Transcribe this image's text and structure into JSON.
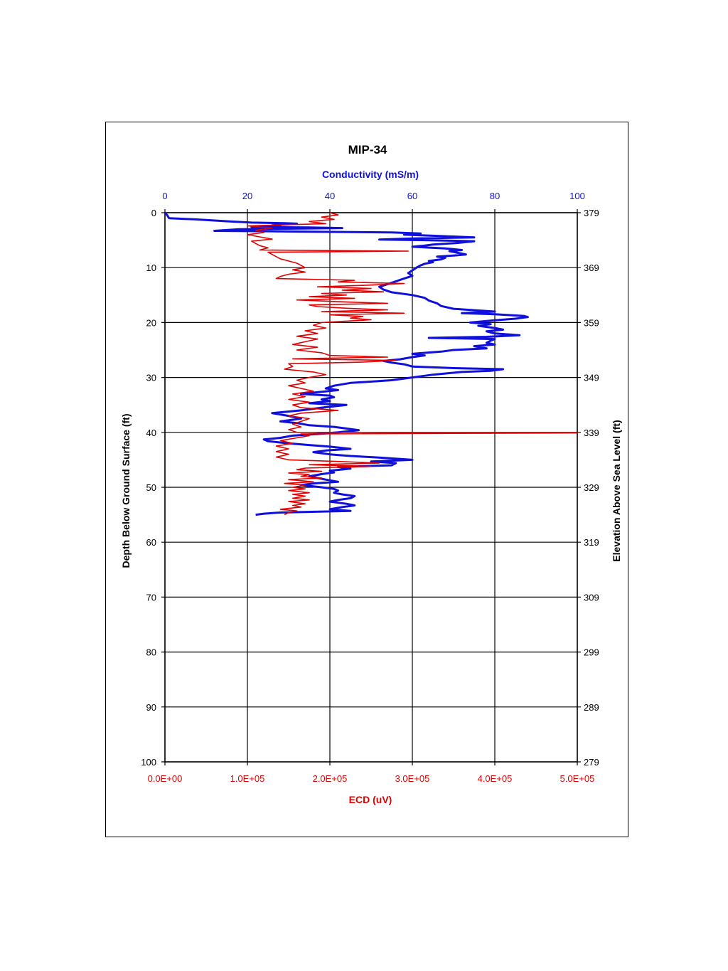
{
  "chart_data": {
    "type": "line",
    "title": "MIP-34",
    "top_axis": {
      "label": "Conductivity (mS/m)",
      "range": [
        0,
        100
      ],
      "ticks": [
        "0",
        "20",
        "40",
        "60",
        "80",
        "100"
      ],
      "color": "#1010dd"
    },
    "bottom_axis": {
      "label": "ECD (uV)",
      "range": [
        0,
        500000
      ],
      "ticks": [
        "0.0E+00",
        "1.0E+05",
        "2.0E+05",
        "3.0E+05",
        "4.0E+05",
        "5.0E+05"
      ],
      "color": "#e00000"
    },
    "left_axis": {
      "label": "Depth Below Ground Surface (ft)",
      "range": [
        0,
        100
      ],
      "ticks": [
        "0",
        "10",
        "20",
        "30",
        "40",
        "50",
        "60",
        "70",
        "80",
        "90",
        "100"
      ]
    },
    "right_axis": {
      "label": "Elevation Above Sea Level (ft)",
      "range": [
        379,
        279
      ],
      "ticks": [
        "379",
        "369",
        "359",
        "349",
        "339",
        "329",
        "319",
        "309",
        "299",
        "289",
        "279"
      ]
    },
    "grid": true,
    "series": [
      {
        "axis": "top",
        "color": "#1010dd",
        "points": [
          [
            0,
            0
          ],
          [
            0.5,
            0.4
          ],
          [
            1,
            1
          ],
          [
            7,
            1.2
          ],
          [
            16,
            1.6
          ],
          [
            21,
            1.8
          ],
          [
            29,
            1.9
          ],
          [
            32,
            2
          ],
          [
            26,
            2.3
          ],
          [
            28,
            2.5
          ],
          [
            21,
            2.6
          ],
          [
            35,
            2.7
          ],
          [
            43,
            2.8
          ],
          [
            18,
            3
          ],
          [
            12,
            3.3
          ],
          [
            27,
            3.4
          ],
          [
            55,
            3.6
          ],
          [
            62,
            3.8
          ],
          [
            58,
            4
          ],
          [
            65,
            4.2
          ],
          [
            75,
            4.5
          ],
          [
            60,
            4.7
          ],
          [
            52,
            4.9
          ],
          [
            63,
            5
          ],
          [
            75,
            5.2
          ],
          [
            71,
            5.5
          ],
          [
            65,
            5.8
          ],
          [
            63,
            6
          ],
          [
            60,
            6.2
          ],
          [
            68,
            6.5
          ],
          [
            72,
            6.8
          ],
          [
            69,
            7
          ],
          [
            71,
            7.3
          ],
          [
            73,
            7.6
          ],
          [
            70,
            7.8
          ],
          [
            66,
            8
          ],
          [
            68,
            8.2
          ],
          [
            67,
            8.5
          ],
          [
            64,
            8.8
          ],
          [
            65,
            9
          ],
          [
            63,
            9.3
          ],
          [
            62,
            9.6
          ],
          [
            61,
            10
          ],
          [
            60,
            10.5
          ],
          [
            59,
            11
          ],
          [
            60,
            11.5
          ],
          [
            58,
            12
          ],
          [
            56,
            12.5
          ],
          [
            54,
            13
          ],
          [
            52,
            13.5
          ],
          [
            53,
            14
          ],
          [
            55,
            14.5
          ],
          [
            60,
            15
          ],
          [
            63,
            15.5
          ],
          [
            64,
            16
          ],
          [
            66,
            16.5
          ],
          [
            67,
            17
          ],
          [
            70,
            17.5
          ],
          [
            80,
            18
          ],
          [
            72,
            18.3
          ],
          [
            80,
            18.5
          ],
          [
            87,
            18.8
          ],
          [
            88,
            19
          ],
          [
            85,
            19.3
          ],
          [
            80,
            19.6
          ],
          [
            74,
            20
          ],
          [
            79,
            20.3
          ],
          [
            76,
            20.6
          ],
          [
            80,
            21
          ],
          [
            82,
            21.3
          ],
          [
            78,
            21.6
          ],
          [
            80,
            22
          ],
          [
            86,
            22.3
          ],
          [
            78,
            22.6
          ],
          [
            64,
            22.8
          ],
          [
            80,
            23
          ],
          [
            79,
            23.3
          ],
          [
            78,
            23.7
          ],
          [
            80,
            24
          ],
          [
            75,
            24.3
          ],
          [
            78,
            24.7
          ],
          [
            70,
            25
          ],
          [
            67,
            25.3
          ],
          [
            60,
            25.7
          ],
          [
            63,
            26
          ],
          [
            60,
            26.3
          ],
          [
            57,
            26.7
          ],
          [
            53,
            27
          ],
          [
            55,
            27.3
          ],
          [
            58,
            27.6
          ],
          [
            60,
            28
          ],
          [
            70,
            28.3
          ],
          [
            82,
            28.5
          ],
          [
            79,
            28.8
          ],
          [
            72,
            29
          ],
          [
            65,
            29.5
          ],
          [
            60,
            30
          ],
          [
            55,
            30.5
          ],
          [
            45,
            31
          ],
          [
            41,
            31.5
          ],
          [
            39,
            32
          ],
          [
            42,
            32.3
          ],
          [
            37,
            32.7
          ],
          [
            33,
            33
          ],
          [
            40,
            33.3
          ],
          [
            41,
            33.6
          ],
          [
            38,
            34
          ],
          [
            40,
            34.3
          ],
          [
            35,
            34.7
          ],
          [
            44,
            35
          ],
          [
            38,
            35.5
          ],
          [
            33,
            36
          ],
          [
            26,
            36.5
          ],
          [
            30,
            37
          ],
          [
            33,
            37.5
          ],
          [
            28,
            38
          ],
          [
            32,
            38.3
          ],
          [
            35,
            38.7
          ],
          [
            41,
            39
          ],
          [
            44,
            39.3
          ],
          [
            47,
            39.6
          ],
          [
            42,
            40
          ],
          [
            37,
            40.3
          ],
          [
            31,
            40.6
          ],
          [
            28,
            41
          ],
          [
            24,
            41.3
          ],
          [
            25,
            41.6
          ],
          [
            30,
            42
          ],
          [
            35,
            42.3
          ],
          [
            40,
            42.6
          ],
          [
            45,
            43
          ],
          [
            39,
            43.3
          ],
          [
            36,
            43.6
          ],
          [
            40,
            44
          ],
          [
            45,
            44.3
          ],
          [
            52,
            44.6
          ],
          [
            60,
            45
          ],
          [
            50,
            45.3
          ],
          [
            56,
            45.6
          ],
          [
            55,
            46
          ],
          [
            42,
            46.3
          ],
          [
            45,
            46.6
          ],
          [
            40,
            47
          ],
          [
            41,
            47.3
          ],
          [
            38,
            47.6
          ],
          [
            35,
            48
          ],
          [
            37,
            48.3
          ],
          [
            39,
            48.6
          ],
          [
            42,
            49
          ],
          [
            36,
            49.3
          ],
          [
            33,
            49.6
          ],
          [
            38,
            50
          ],
          [
            41,
            50.3
          ],
          [
            42,
            50.6
          ],
          [
            41,
            51
          ],
          [
            43,
            51.3
          ],
          [
            46,
            51.6
          ],
          [
            45,
            52
          ],
          [
            42,
            52.3
          ],
          [
            40,
            52.6
          ],
          [
            44,
            53
          ],
          [
            46,
            53.3
          ],
          [
            43,
            53.6
          ],
          [
            40,
            54
          ],
          [
            45,
            54.3
          ],
          [
            28,
            54.6
          ],
          [
            24,
            54.8
          ],
          [
            22,
            55
          ]
        ]
      },
      {
        "axis": "bottom",
        "color": "#e00000",
        "points": [
          [
            200000,
            0
          ],
          [
            210000,
            0.4
          ],
          [
            190000,
            0.8
          ],
          [
            205000,
            1.2
          ],
          [
            175000,
            1.6
          ],
          [
            195000,
            2
          ],
          [
            100000,
            2.4
          ],
          [
            130000,
            2.8
          ],
          [
            110000,
            3.2
          ],
          [
            120000,
            3.6
          ],
          [
            100000,
            4
          ],
          [
            115000,
            4.4
          ],
          [
            130000,
            4.8
          ],
          [
            105000,
            5.2
          ],
          [
            110000,
            5.6
          ],
          [
            115000,
            6
          ],
          [
            125000,
            6.4
          ],
          [
            115000,
            6.8
          ],
          [
            295000,
            7
          ],
          [
            125000,
            7.2
          ],
          [
            130000,
            7.6
          ],
          [
            135000,
            8
          ],
          [
            140000,
            8.4
          ],
          [
            150000,
            8.8
          ],
          [
            160000,
            9.2
          ],
          [
            165000,
            9.6
          ],
          [
            170000,
            10
          ],
          [
            155000,
            10.4
          ],
          [
            170000,
            10.8
          ],
          [
            150000,
            11.2
          ],
          [
            140000,
            11.6
          ],
          [
            135000,
            12
          ],
          [
            230000,
            12.3
          ],
          [
            210000,
            12.6
          ],
          [
            290000,
            12.9
          ],
          [
            245000,
            13.2
          ],
          [
            185000,
            13.5
          ],
          [
            250000,
            13.8
          ],
          [
            215000,
            14.1
          ],
          [
            265000,
            14.4
          ],
          [
            190000,
            14.7
          ],
          [
            220000,
            15
          ],
          [
            175000,
            15.3
          ],
          [
            230000,
            15.6
          ],
          [
            160000,
            15.9
          ],
          [
            210000,
            16.2
          ],
          [
            270000,
            16.5
          ],
          [
            175000,
            16.8
          ],
          [
            185000,
            17.1
          ],
          [
            220000,
            17.4
          ],
          [
            270000,
            17.7
          ],
          [
            190000,
            18
          ],
          [
            290000,
            18.3
          ],
          [
            200000,
            18.6
          ],
          [
            240000,
            18.9
          ],
          [
            225000,
            19.2
          ],
          [
            250000,
            19.5
          ],
          [
            190000,
            20
          ],
          [
            180000,
            20.5
          ],
          [
            195000,
            21
          ],
          [
            170000,
            21.5
          ],
          [
            185000,
            22
          ],
          [
            160000,
            22.5
          ],
          [
            185000,
            23
          ],
          [
            170000,
            23.5
          ],
          [
            155000,
            24
          ],
          [
            185000,
            24.5
          ],
          [
            160000,
            25
          ],
          [
            190000,
            25.5
          ],
          [
            200000,
            26
          ],
          [
            270000,
            26.3
          ],
          [
            155000,
            26.6
          ],
          [
            280000,
            26.9
          ],
          [
            240000,
            27.2
          ],
          [
            150000,
            27.5
          ],
          [
            155000,
            28
          ],
          [
            145000,
            28.5
          ],
          [
            180000,
            29
          ],
          [
            195000,
            29.5
          ],
          [
            175000,
            30
          ],
          [
            160000,
            30.5
          ],
          [
            170000,
            31
          ],
          [
            150000,
            31.5
          ],
          [
            165000,
            32
          ],
          [
            180000,
            32.5
          ],
          [
            155000,
            33
          ],
          [
            170000,
            33.5
          ],
          [
            150000,
            34
          ],
          [
            175000,
            34.5
          ],
          [
            155000,
            35
          ],
          [
            165000,
            35.5
          ],
          [
            210000,
            36
          ],
          [
            165000,
            36.5
          ],
          [
            150000,
            37
          ],
          [
            175000,
            37.5
          ],
          [
            165000,
            38
          ],
          [
            155000,
            38.5
          ],
          [
            165000,
            39
          ],
          [
            150000,
            39.5
          ],
          [
            160000,
            40
          ],
          [
            500000,
            40.1
          ],
          [
            330000,
            40.2
          ],
          [
            165000,
            40.3
          ],
          [
            175000,
            40.6
          ],
          [
            160000,
            41
          ],
          [
            140000,
            41.5
          ],
          [
            155000,
            42
          ],
          [
            135000,
            42.5
          ],
          [
            150000,
            43
          ],
          [
            135000,
            43.5
          ],
          [
            150000,
            44
          ],
          [
            135000,
            44.5
          ],
          [
            150000,
            45
          ],
          [
            210000,
            45.3
          ],
          [
            260000,
            45.6
          ],
          [
            175000,
            45.9
          ],
          [
            250000,
            46.2
          ],
          [
            170000,
            46.5
          ],
          [
            160000,
            46.8
          ],
          [
            190000,
            47.1
          ],
          [
            150000,
            47.4
          ],
          [
            175000,
            47.7
          ],
          [
            165000,
            48
          ],
          [
            190000,
            48.3
          ],
          [
            150000,
            48.6
          ],
          [
            180000,
            49
          ],
          [
            145000,
            49.3
          ],
          [
            170000,
            49.6
          ],
          [
            155000,
            50
          ],
          [
            170000,
            50.3
          ],
          [
            150000,
            50.6
          ],
          [
            175000,
            51
          ],
          [
            155000,
            51.3
          ],
          [
            170000,
            51.6
          ],
          [
            155000,
            52
          ],
          [
            175000,
            52.3
          ],
          [
            150000,
            52.6
          ],
          [
            170000,
            53
          ],
          [
            155000,
            53.3
          ],
          [
            165000,
            53.6
          ],
          [
            140000,
            54
          ],
          [
            160000,
            54.3
          ],
          [
            150000,
            54.6
          ],
          [
            145000,
            55
          ]
        ]
      }
    ]
  }
}
